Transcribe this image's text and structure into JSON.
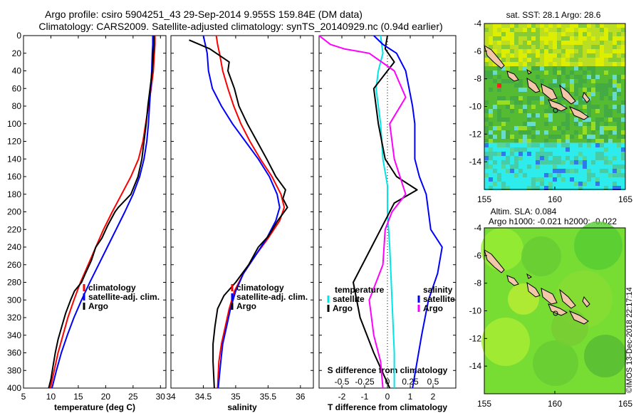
{
  "title_line1": "Argo profile: csiro 5904251_43 29-Sep-2014 9.955S 159.84E (DM data)",
  "title_line2": "Climatology: CARS2009. Satellite-adjusted climatology: synTS_20140929.nc (0.94d earlier)",
  "stamp": "©IMOS 13-Dec-2018 22:17:14",
  "colors": {
    "climatology": "#ff0000",
    "satellite": "#0000ff",
    "argo": "#000000",
    "sat_diff": "#00e5e5",
    "sal_diff": "#ff00ff"
  },
  "chart_data": [
    {
      "type": "line",
      "name": "temperature",
      "xlabel": "temperature (deg C)",
      "ylabel": "",
      "xlim": [
        5,
        31
      ],
      "ylim": [
        400,
        0
      ],
      "x_ticks": [
        5,
        10,
        15,
        20,
        25,
        30
      ],
      "y_ticks": [
        0,
        20,
        40,
        60,
        80,
        100,
        120,
        140,
        160,
        180,
        200,
        220,
        240,
        260,
        280,
        300,
        320,
        340,
        360,
        380,
        400
      ],
      "legend": [
        "climatology",
        "satellite-adj. clim.",
        "Argo"
      ],
      "series": [
        {
          "name": "climatology",
          "points": [
            [
              29.0,
              0
            ],
            [
              29.0,
              10
            ],
            [
              28.9,
              20
            ],
            [
              28.7,
              40
            ],
            [
              28.3,
              60
            ],
            [
              27.8,
              80
            ],
            [
              27.3,
              100
            ],
            [
              26.8,
              120
            ],
            [
              26.0,
              140
            ],
            [
              24.6,
              160
            ],
            [
              22.9,
              180
            ],
            [
              21.2,
              200
            ],
            [
              19.6,
              220
            ],
            [
              18.2,
              240
            ],
            [
              16.8,
              260
            ],
            [
              15.4,
              280
            ],
            [
              14.2,
              300
            ],
            [
              13.1,
              320
            ],
            [
              12.2,
              340
            ],
            [
              11.3,
              360
            ],
            [
              10.6,
              380
            ],
            [
              9.9,
              400
            ]
          ]
        },
        {
          "name": "satellite-adj. clim.",
          "points": [
            [
              28.6,
              0
            ],
            [
              28.6,
              10
            ],
            [
              28.5,
              20
            ],
            [
              28.4,
              40
            ],
            [
              28.2,
              60
            ],
            [
              28.0,
              80
            ],
            [
              27.8,
              100
            ],
            [
              27.5,
              120
            ],
            [
              27.0,
              140
            ],
            [
              26.2,
              160
            ],
            [
              25.0,
              180
            ],
            [
              23.5,
              200
            ],
            [
              21.9,
              220
            ],
            [
              20.3,
              240
            ],
            [
              18.7,
              260
            ],
            [
              17.1,
              280
            ],
            [
              15.6,
              300
            ],
            [
              14.2,
              320
            ],
            [
              13.0,
              340
            ],
            [
              11.9,
              360
            ],
            [
              11.0,
              380
            ],
            [
              10.2,
              400
            ]
          ]
        },
        {
          "name": "Argo",
          "points": [
            [
              28.8,
              0
            ],
            [
              28.8,
              10
            ],
            [
              28.7,
              20
            ],
            [
              28.5,
              40
            ],
            [
              28.1,
              60
            ],
            [
              27.7,
              80
            ],
            [
              27.4,
              100
            ],
            [
              27.0,
              120
            ],
            [
              26.6,
              140
            ],
            [
              25.9,
              160
            ],
            [
              24.6,
              180
            ],
            [
              22.3,
              195
            ],
            [
              21.7,
              200
            ],
            [
              20.4,
              215
            ],
            [
              19.3,
              230
            ],
            [
              18.2,
              240
            ],
            [
              17.4,
              255
            ],
            [
              16.3,
              270
            ],
            [
              15.6,
              280
            ],
            [
              14.3,
              290
            ],
            [
              13.6,
              300
            ],
            [
              12.7,
              315
            ],
            [
              12.0,
              330
            ],
            [
              11.3,
              345
            ],
            [
              10.8,
              360
            ],
            [
              10.4,
              375
            ],
            [
              10.0,
              390
            ],
            [
              9.6,
              400
            ]
          ]
        }
      ]
    },
    {
      "type": "line",
      "name": "salinity",
      "xlabel": "salinity",
      "xlim": [
        34,
        36.2
      ],
      "ylim": [
        400,
        0
      ],
      "x_ticks": [
        34,
        34.5,
        35,
        35.5,
        36
      ],
      "legend": [
        "climatology",
        "satellite-adj. clim.",
        "Argo"
      ],
      "series": [
        {
          "name": "climatology",
          "points": [
            [
              34.7,
              0
            ],
            [
              34.72,
              10
            ],
            [
              34.75,
              20
            ],
            [
              34.8,
              40
            ],
            [
              34.88,
              60
            ],
            [
              34.97,
              80
            ],
            [
              35.08,
              100
            ],
            [
              35.22,
              120
            ],
            [
              35.38,
              140
            ],
            [
              35.56,
              160
            ],
            [
              35.7,
              180
            ],
            [
              35.75,
              195
            ],
            [
              35.68,
              210
            ],
            [
              35.5,
              230
            ],
            [
              35.3,
              250
            ],
            [
              35.12,
              270
            ],
            [
              34.98,
              290
            ],
            [
              34.9,
              310
            ],
            [
              34.84,
              330
            ],
            [
              34.78,
              350
            ],
            [
              34.74,
              370
            ],
            [
              34.72,
              400
            ]
          ]
        },
        {
          "name": "satellite-adj. clim.",
          "points": [
            [
              34.5,
              0
            ],
            [
              34.53,
              10
            ],
            [
              34.56,
              20
            ],
            [
              34.58,
              40
            ],
            [
              34.64,
              60
            ],
            [
              34.78,
              80
            ],
            [
              34.95,
              100
            ],
            [
              35.15,
              120
            ],
            [
              35.35,
              140
            ],
            [
              35.52,
              160
            ],
            [
              35.64,
              180
            ],
            [
              35.68,
              195
            ],
            [
              35.62,
              210
            ],
            [
              35.48,
              230
            ],
            [
              35.3,
              250
            ],
            [
              35.12,
              270
            ],
            [
              35.0,
              290
            ],
            [
              34.92,
              310
            ],
            [
              34.86,
              330
            ],
            [
              34.8,
              350
            ],
            [
              34.77,
              370
            ],
            [
              34.73,
              400
            ]
          ]
        },
        {
          "name": "Argo",
          "points": [
            [
              34.28,
              5
            ],
            [
              34.6,
              15
            ],
            [
              34.9,
              30
            ],
            [
              34.88,
              40
            ],
            [
              34.98,
              60
            ],
            [
              35.05,
              80
            ],
            [
              35.18,
              100
            ],
            [
              35.33,
              120
            ],
            [
              35.48,
              140
            ],
            [
              35.62,
              160
            ],
            [
              35.77,
              175
            ],
            [
              35.73,
              185
            ],
            [
              35.8,
              195
            ],
            [
              35.65,
              210
            ],
            [
              35.5,
              228
            ],
            [
              35.35,
              240
            ],
            [
              35.2,
              260
            ],
            [
              35.0,
              280
            ],
            [
              34.82,
              295
            ],
            [
              34.72,
              310
            ],
            [
              34.68,
              330
            ],
            [
              34.65,
              350
            ],
            [
              34.65,
              370
            ],
            [
              34.67,
              400
            ]
          ]
        }
      ]
    },
    {
      "type": "line",
      "name": "difference",
      "xlabel": "T difference from climatology",
      "x2label": "S difference from climatology",
      "xlim": [
        -3,
        3
      ],
      "ylim": [
        400,
        0
      ],
      "x_ticks": [
        -2,
        -1,
        0,
        1,
        2
      ],
      "x2_ticks": [
        "-0.5",
        "-0.25",
        "0",
        "0.25",
        "0.5"
      ],
      "legend_t_title": "temperature",
      "legend_s_title": "salinity",
      "legend": [
        "satellite",
        "Argo"
      ],
      "series": [
        {
          "name": "temperature satellite",
          "points": [
            [
              -0.3,
              0
            ],
            [
              -0.2,
              20
            ],
            [
              -0.4,
              40
            ],
            [
              -0.5,
              60
            ],
            [
              -0.3,
              100
            ],
            [
              -0.2,
              140
            ],
            [
              0.0,
              170
            ],
            [
              0.0,
              200
            ],
            [
              0.1,
              240
            ],
            [
              0.2,
              300
            ],
            [
              0.3,
              360
            ],
            [
              0.3,
              400
            ]
          ]
        },
        {
          "name": "temperature Argo",
          "points": [
            [
              0.0,
              0
            ],
            [
              -0.1,
              15
            ],
            [
              0.3,
              30
            ],
            [
              -0.6,
              60
            ],
            [
              -0.4,
              100
            ],
            [
              -0.1,
              140
            ],
            [
              0.4,
              160
            ],
            [
              1.3,
              175
            ],
            [
              0.3,
              190
            ],
            [
              0.0,
              205
            ],
            [
              -0.7,
              240
            ],
            [
              -1.5,
              280
            ],
            [
              -1.2,
              320
            ],
            [
              -0.6,
              360
            ],
            [
              0.1,
              400
            ]
          ]
        },
        {
          "name": "salinity satellite",
          "points": [
            [
              -0.6,
              0
            ],
            [
              -0.2,
              10
            ],
            [
              0.4,
              20
            ],
            [
              0.8,
              40
            ],
            [
              1.1,
              80
            ],
            [
              1.2,
              100
            ],
            [
              1.2,
              140
            ],
            [
              1.4,
              160
            ],
            [
              1.7,
              180
            ],
            [
              1.8,
              200
            ],
            [
              1.9,
              220
            ],
            [
              2.4,
              240
            ],
            [
              2.2,
              270
            ],
            [
              1.8,
              300
            ],
            [
              1.5,
              340
            ],
            [
              1.3,
              370
            ],
            [
              1.1,
              400
            ]
          ]
        },
        {
          "name": "salinity Argo",
          "points": [
            [
              -3.0,
              0
            ],
            [
              -2.5,
              10
            ],
            [
              -1.9,
              15
            ],
            [
              -0.8,
              20
            ],
            [
              0.3,
              40
            ],
            [
              0.8,
              70
            ],
            [
              0.1,
              100
            ],
            [
              0.3,
              140
            ],
            [
              0.8,
              180
            ],
            [
              0.2,
              200
            ],
            [
              -0.1,
              220
            ],
            [
              -0.2,
              260
            ],
            [
              -0.8,
              300
            ],
            [
              -0.6,
              340
            ],
            [
              -0.3,
              370
            ],
            [
              -0.2,
              400
            ]
          ]
        }
      ]
    }
  ],
  "maps": [
    {
      "title": "sat. SST: 28.1 Argo: 28.6",
      "lon_ticks": [
        "155",
        "160",
        "165"
      ],
      "lat_ticks": [
        "-4",
        "-6",
        "-8",
        "-10",
        "-12",
        "-14"
      ]
    },
    {
      "title": "Altim. SLA: 0.084",
      "subtitle": "Argo h1000: -0.021 h2000: -0.022",
      "lon_ticks": [
        "155",
        "160",
        "165"
      ],
      "lat_ticks": [
        "-4",
        "-6",
        "-8",
        "-10",
        "-12",
        "-14"
      ]
    }
  ]
}
